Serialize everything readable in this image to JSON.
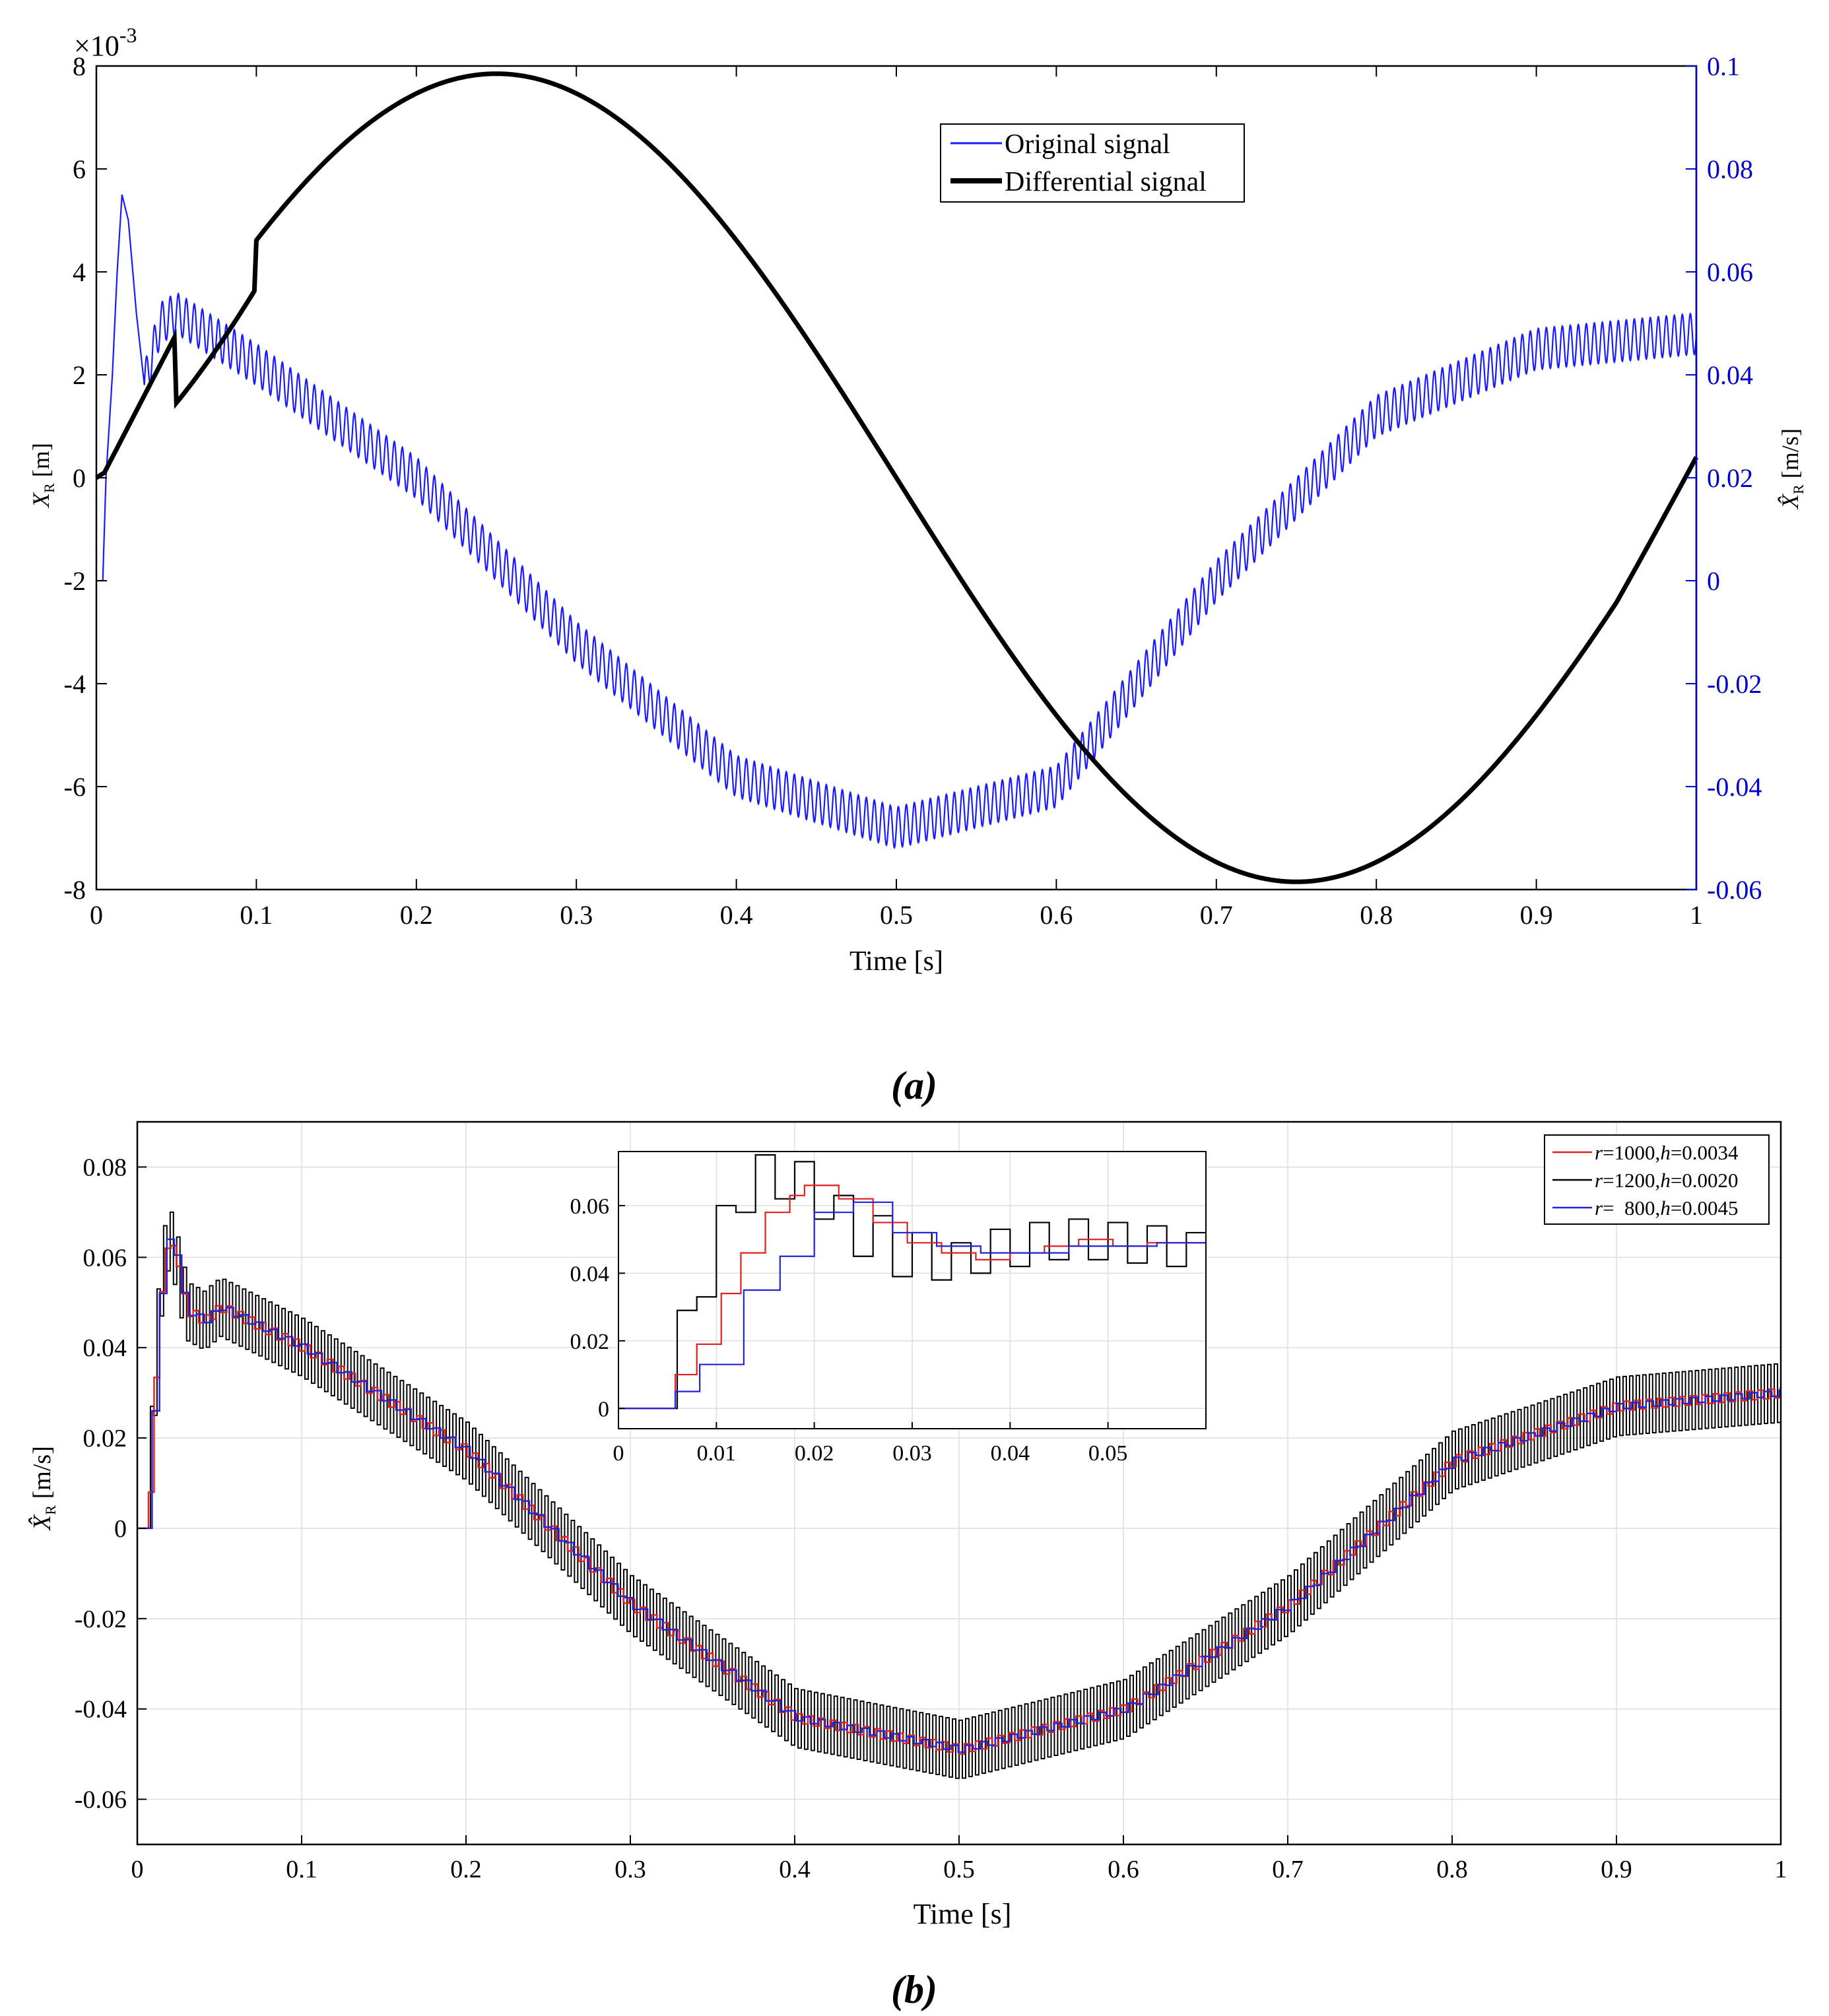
{
  "figure": {
    "panel_a_caption": "(a)",
    "panel_b_caption": "(b)"
  },
  "chart_data": [
    {
      "id": "a",
      "type": "line",
      "xlabel": "Time [s]",
      "ylabel_left": "X_R [m]",
      "ylabel_right": "X̂_R [m/s]",
      "y_left_exponent": "×10^-3",
      "xlim": [
        0,
        1
      ],
      "ylim_left": [
        -8,
        8
      ],
      "ylim_right": [
        -0.06,
        0.1
      ],
      "x_ticks": [
        0,
        0.1,
        0.2,
        0.3,
        0.4,
        0.5,
        0.6,
        0.7,
        0.8,
        0.9,
        1
      ],
      "y_left_ticks": [
        -8,
        -6,
        -4,
        -2,
        0,
        2,
        4,
        6,
        8
      ],
      "y_right_ticks": [
        -0.06,
        -0.04,
        -0.02,
        0,
        0.02,
        0.04,
        0.06,
        0.08,
        0.1
      ],
      "grid": false,
      "legend_position": "top-center",
      "colors": {
        "original": "#1a1aff",
        "differential": "#000000",
        "right_axis": "#0000cc"
      },
      "series": [
        {
          "name": "Original signal",
          "axis": "right",
          "description_points": {
            "x": [
              0,
              0.004,
              0.006,
              0.008,
              0.01,
              0.013,
              0.016,
              0.02,
              0.025,
              0.03,
              0.04,
              0.05,
              0.1,
              0.2,
              0.3,
              0.4,
              0.5,
              0.6,
              0.7,
              0.8,
              0.9,
              1.0
            ],
            "y": [
              0,
              0,
              0.02,
              0.03,
              0.04,
              0.06,
              0.075,
              0.07,
              0.052,
              0.038,
              0.05,
              0.052,
              0.042,
              0.02,
              -0.012,
              -0.038,
              -0.048,
              -0.04,
              0.0,
              0.032,
              0.045,
              0.048
            ]
          },
          "oscillation_amplitude": 0.004,
          "oscillation_cycles": 200
        },
        {
          "name": "Differential signal",
          "axis": "left",
          "description_points": {
            "x": [
              0,
              0.005,
              0.05,
              0.1,
              0.15,
              0.2,
              0.25,
              0.3,
              0.4,
              0.5,
              0.6,
              0.7,
              0.75,
              0.8,
              0.9,
              1.0
            ],
            "y": [
              0,
              0.1,
              2.8,
              4.6,
              6.6,
              7.5,
              7.85,
              7.5,
              4.5,
              0,
              -4.5,
              -7.4,
              -7.75,
              -7.3,
              -4.6,
              0.2
            ]
          }
        }
      ]
    },
    {
      "id": "b",
      "type": "line",
      "xlabel": "Time [s]",
      "ylabel": "X̂_R [m/s]",
      "xlim": [
        0,
        1
      ],
      "ylim": [
        -0.07,
        0.09
      ],
      "x_ticks": [
        0,
        0.1,
        0.2,
        0.3,
        0.4,
        0.5,
        0.6,
        0.7,
        0.8,
        0.9,
        1
      ],
      "y_ticks": [
        -0.06,
        -0.04,
        -0.02,
        0,
        0.02,
        0.04,
        0.06,
        0.08
      ],
      "grid": true,
      "legend_position": "top-right",
      "series": [
        {
          "name": "r=1000,h=0.0034",
          "legend_label": {
            "r_val": "=1000,",
            "h_val": "=0.0034"
          },
          "color": "#e02020",
          "step": 0.0034,
          "oscillation_amplitude": 0.001
        },
        {
          "name": "r=1200,h=0.0020",
          "legend_label": {
            "r_val": "=1200,",
            "h_val": "=0.0020"
          },
          "color": "#000000",
          "step": 0.002,
          "oscillation_amplitude": 0.0065
        },
        {
          "name": "r= 800,h=0.0045",
          "legend_label": {
            "r_val": "=  800,",
            "h_val": "=0.0045"
          },
          "color": "#2222dd",
          "step": 0.0045,
          "oscillation_amplitude": 0.0006
        }
      ],
      "base_curve": {
        "x": [
          0,
          0.006,
          0.008,
          0.01,
          0.012,
          0.015,
          0.018,
          0.02,
          0.023,
          0.025,
          0.03,
          0.04,
          0.05,
          0.1,
          0.2,
          0.3,
          0.4,
          0.5,
          0.6,
          0.7,
          0.8,
          0.9,
          1.0
        ],
        "y": [
          0,
          0,
          0.02,
          0.032,
          0.046,
          0.058,
          0.064,
          0.063,
          0.06,
          0.055,
          0.048,
          0.046,
          0.049,
          0.04,
          0.017,
          -0.017,
          -0.042,
          -0.049,
          -0.04,
          -0.017,
          0.015,
          0.027,
          0.03
        ]
      },
      "inset": {
        "xlim": [
          0,
          0.06
        ],
        "ylim": [
          -0.006,
          0.076
        ],
        "x_ticks": [
          0,
          0.01,
          0.02,
          0.03,
          0.04,
          0.05
        ],
        "y_ticks": [
          0,
          0.02,
          0.04,
          0.06
        ],
        "grid": true,
        "series_steps": [
          {
            "name": "r=1000,h=0.0034",
            "color": "#e02020",
            "x": [
              0,
              0.0058,
              0.0058,
              0.008,
              0.008,
              0.0105,
              0.0105,
              0.0125,
              0.0125,
              0.015,
              0.015,
              0.0175,
              0.0175,
              0.019,
              0.019,
              0.0225,
              0.0225,
              0.026,
              0.026,
              0.0295,
              0.0295,
              0.033,
              0.033,
              0.0365,
              0.0365,
              0.04,
              0.04,
              0.0435,
              0.0435,
              0.047,
              0.047,
              0.0505,
              0.0505,
              0.054,
              0.054,
              0.06
            ],
            "y": [
              0,
              0,
              0.01,
              0.01,
              0.019,
              0.019,
              0.034,
              0.034,
              0.046,
              0.046,
              0.058,
              0.058,
              0.063,
              0.063,
              0.066,
              0.066,
              0.062,
              0.062,
              0.055,
              0.055,
              0.049,
              0.049,
              0.046,
              0.046,
              0.044,
              0.044,
              0.046,
              0.046,
              0.048,
              0.048,
              0.05,
              0.05,
              0.048,
              0.048,
              0.049,
              0.049
            ]
          },
          {
            "name": "r=1200,h=0.0020",
            "color": "#000000",
            "x": [
              0,
              0.006,
              0.006,
              0.008,
              0.008,
              0.01,
              0.01,
              0.012,
              0.012,
              0.014,
              0.014,
              0.016,
              0.016,
              0.018,
              0.018,
              0.02,
              0.02,
              0.022,
              0.022,
              0.024,
              0.024,
              0.026,
              0.026,
              0.028,
              0.028,
              0.03,
              0.03,
              0.032,
              0.032,
              0.034,
              0.034,
              0.036,
              0.036,
              0.038,
              0.038,
              0.04,
              0.04,
              0.042,
              0.042,
              0.044,
              0.044,
              0.046,
              0.046,
              0.048,
              0.048,
              0.05,
              0.05,
              0.052,
              0.052,
              0.054,
              0.054,
              0.056,
              0.056,
              0.058,
              0.058,
              0.06
            ],
            "y": [
              0,
              0,
              0.029,
              0.029,
              0.033,
              0.033,
              0.06,
              0.06,
              0.058,
              0.058,
              0.075,
              0.075,
              0.062,
              0.062,
              0.073,
              0.073,
              0.056,
              0.056,
              0.063,
              0.063,
              0.045,
              0.045,
              0.057,
              0.057,
              0.039,
              0.039,
              0.052,
              0.052,
              0.038,
              0.038,
              0.049,
              0.049,
              0.04,
              0.04,
              0.053,
              0.053,
              0.042,
              0.042,
              0.055,
              0.055,
              0.044,
              0.044,
              0.056,
              0.056,
              0.044,
              0.044,
              0.055,
              0.055,
              0.043,
              0.043,
              0.054,
              0.054,
              0.042,
              0.042,
              0.052,
              0.052
            ]
          },
          {
            "name": "r= 800,h=0.0045",
            "color": "#2222dd",
            "x": [
              0,
              0.0058,
              0.0058,
              0.0083,
              0.0083,
              0.0128,
              0.0128,
              0.0165,
              0.0165,
              0.02,
              0.02,
              0.024,
              0.024,
              0.028,
              0.028,
              0.0325,
              0.0325,
              0.037,
              0.037,
              0.0415,
              0.0415,
              0.046,
              0.046,
              0.0505,
              0.0505,
              0.055,
              0.055,
              0.06
            ],
            "y": [
              0,
              0,
              0.005,
              0.005,
              0.013,
              0.013,
              0.035,
              0.035,
              0.045,
              0.045,
              0.058,
              0.058,
              0.061,
              0.061,
              0.052,
              0.052,
              0.048,
              0.048,
              0.046,
              0.046,
              0.046,
              0.046,
              0.048,
              0.048,
              0.048,
              0.048,
              0.049,
              0.049
            ]
          }
        ]
      }
    }
  ]
}
